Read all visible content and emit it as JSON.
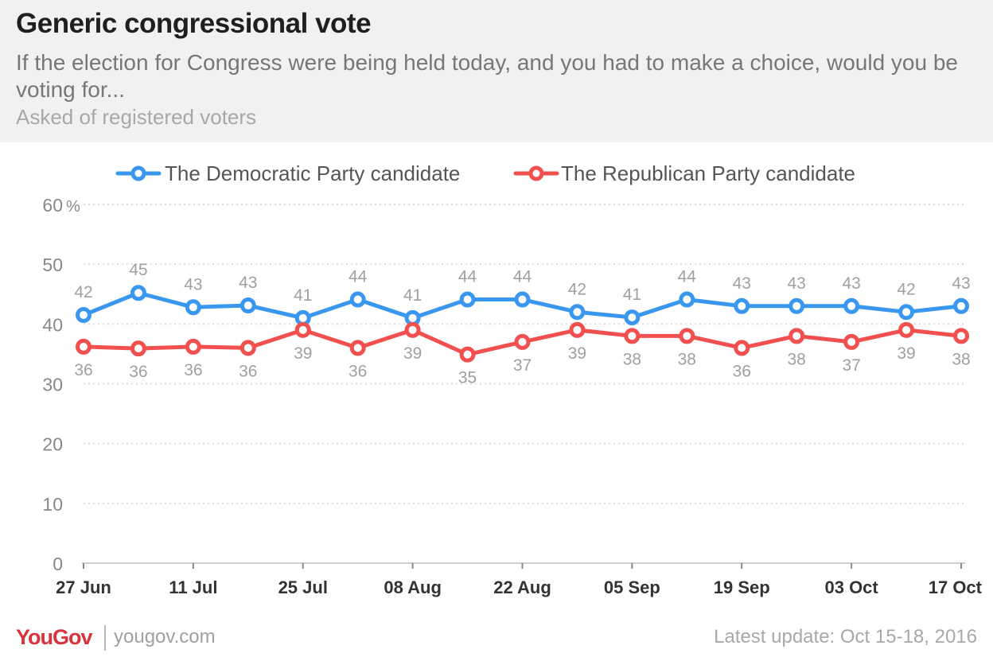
{
  "header": {
    "title": "Generic congressional vote",
    "subtitle": "If the election for Congress were being held today, and you had to make a choice, would you be voting for...",
    "note": "Asked of registered voters"
  },
  "footer": {
    "logo": "YouGov",
    "url": "yougov.com",
    "update": "Latest update: Oct 15-18, 2016"
  },
  "colors": {
    "democratic": "#3a97f0",
    "republican": "#f24f4f",
    "grid": "#dcdcdc",
    "tick_text": "#888888",
    "data_label": "#a0a0a0",
    "axis_label": "#333333"
  },
  "chart_data": {
    "type": "line",
    "ylim": [
      0,
      60
    ],
    "y_ticks": [
      "0",
      "10",
      "20",
      "30",
      "40",
      "50",
      "60"
    ],
    "y_unit": "%",
    "grid": true,
    "legend_placement": "top-center",
    "x_tick_labels": [
      "27 Jun",
      "11 Jul",
      "25 Jul",
      "08 Aug",
      "22 Aug",
      "05 Sep",
      "19 Sep",
      "03 Oct",
      "17 Oct"
    ],
    "x": [
      "2016-06-27",
      "2016-07-04",
      "2016-07-11",
      "2016-07-18",
      "2016-07-25",
      "2016-08-01",
      "2016-08-08",
      "2016-08-15",
      "2016-08-22",
      "2016-08-29",
      "2016-09-05",
      "2016-09-12",
      "2016-09-19",
      "2016-09-26",
      "2016-10-03",
      "2016-10-10",
      "2016-10-17"
    ],
    "series": [
      {
        "name": "The Democratic Party candidate",
        "values": [
          41.5,
          45.2,
          42.8,
          43.1,
          41.0,
          44.1,
          41.0,
          44.1,
          44.1,
          42.0,
          41.1,
          44.1,
          43.0,
          43.0,
          43.0,
          42.0,
          43.0
        ],
        "labels": [
          "42",
          "45",
          "43",
          "43",
          "41",
          "44",
          "41",
          "44",
          "44",
          "42",
          "41",
          "44",
          "43",
          "43",
          "43",
          "42",
          "43"
        ]
      },
      {
        "name": "The Republican Party candidate",
        "values": [
          36.2,
          35.9,
          36.2,
          36.0,
          39.0,
          36.0,
          39.0,
          34.9,
          37.0,
          39.0,
          38.0,
          38.0,
          36.0,
          38.0,
          37.0,
          39.0,
          38.0
        ],
        "labels": [
          "36",
          "36",
          "36",
          "36",
          "39",
          "36",
          "39",
          "35",
          "37",
          "39",
          "38",
          "38",
          "36",
          "38",
          "37",
          "39",
          "38"
        ]
      }
    ]
  }
}
